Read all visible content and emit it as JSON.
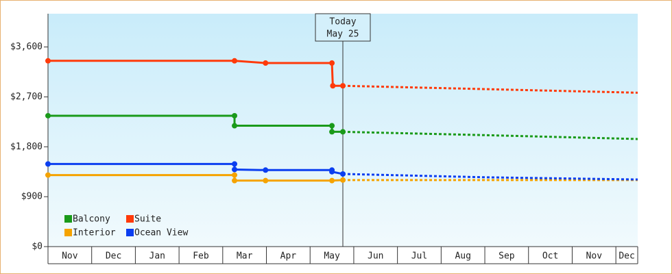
{
  "chart_data": {
    "type": "line",
    "ylim": [
      0,
      4200
    ],
    "yticks": [
      {
        "value": 0,
        "label": "$0"
      },
      {
        "value": 900,
        "label": "$900"
      },
      {
        "value": 1800,
        "label": "$1,800"
      },
      {
        "value": 2700,
        "label": "$2,700"
      },
      {
        "value": 3600,
        "label": "$3,600"
      }
    ],
    "xlim": [
      0,
      13.5
    ],
    "xticks": [
      {
        "value": 0,
        "label": "Nov"
      },
      {
        "value": 1,
        "label": "Dec"
      },
      {
        "value": 2,
        "label": "Jan"
      },
      {
        "value": 3,
        "label": "Feb"
      },
      {
        "value": 4,
        "label": "Mar"
      },
      {
        "value": 5,
        "label": "Apr"
      },
      {
        "value": 6,
        "label": "May"
      },
      {
        "value": 7,
        "label": "Jun"
      },
      {
        "value": 8,
        "label": "Jul"
      },
      {
        "value": 9,
        "label": "Aug"
      },
      {
        "value": 10,
        "label": "Sep"
      },
      {
        "value": 11,
        "label": "Oct"
      },
      {
        "value": 12,
        "label": "Nov"
      },
      {
        "value": 13,
        "label": "Dec"
      }
    ],
    "today": {
      "label": "Today",
      "date": "May 25",
      "x": 6.75
    },
    "series": [
      {
        "name": "Balcony",
        "color": "#1a9a1a",
        "x": [
          0,
          4.27,
          4.27,
          6.5,
          6.5,
          6.75
        ],
        "values": [
          2360,
          2360,
          2180,
          2180,
          2070,
          2070
        ],
        "forecast_x": [
          6.75,
          10,
          13.5
        ],
        "forecast_values": [
          2070,
          2010,
          1940
        ]
      },
      {
        "name": "Suite",
        "color": "#ff3a0a",
        "x": [
          0,
          4.27,
          4.98,
          6.5,
          6.52,
          6.75
        ],
        "values": [
          3350,
          3350,
          3310,
          3310,
          2900,
          2900
        ],
        "forecast_x": [
          6.75,
          10,
          13.5
        ],
        "forecast_values": [
          2900,
          2840,
          2775
        ]
      },
      {
        "name": "Interior",
        "color": "#f5a300",
        "x": [
          0,
          4.27,
          4.27,
          4.98,
          6.5,
          6.75
        ],
        "values": [
          1290,
          1290,
          1190,
          1190,
          1190,
          1200
        ],
        "forecast_x": [
          6.75,
          10,
          13.5
        ],
        "forecast_values": [
          1200,
          1200,
          1200
        ]
      },
      {
        "name": "Ocean View",
        "color": "#0b3ef0",
        "x": [
          0,
          4.27,
          4.27,
          4.98,
          6.5,
          6.5,
          6.75
        ],
        "values": [
          1490,
          1490,
          1390,
          1380,
          1380,
          1350,
          1310
        ],
        "forecast_x": [
          6.75,
          10,
          13.5
        ],
        "forecast_values": [
          1310,
          1250,
          1210
        ]
      }
    ]
  }
}
